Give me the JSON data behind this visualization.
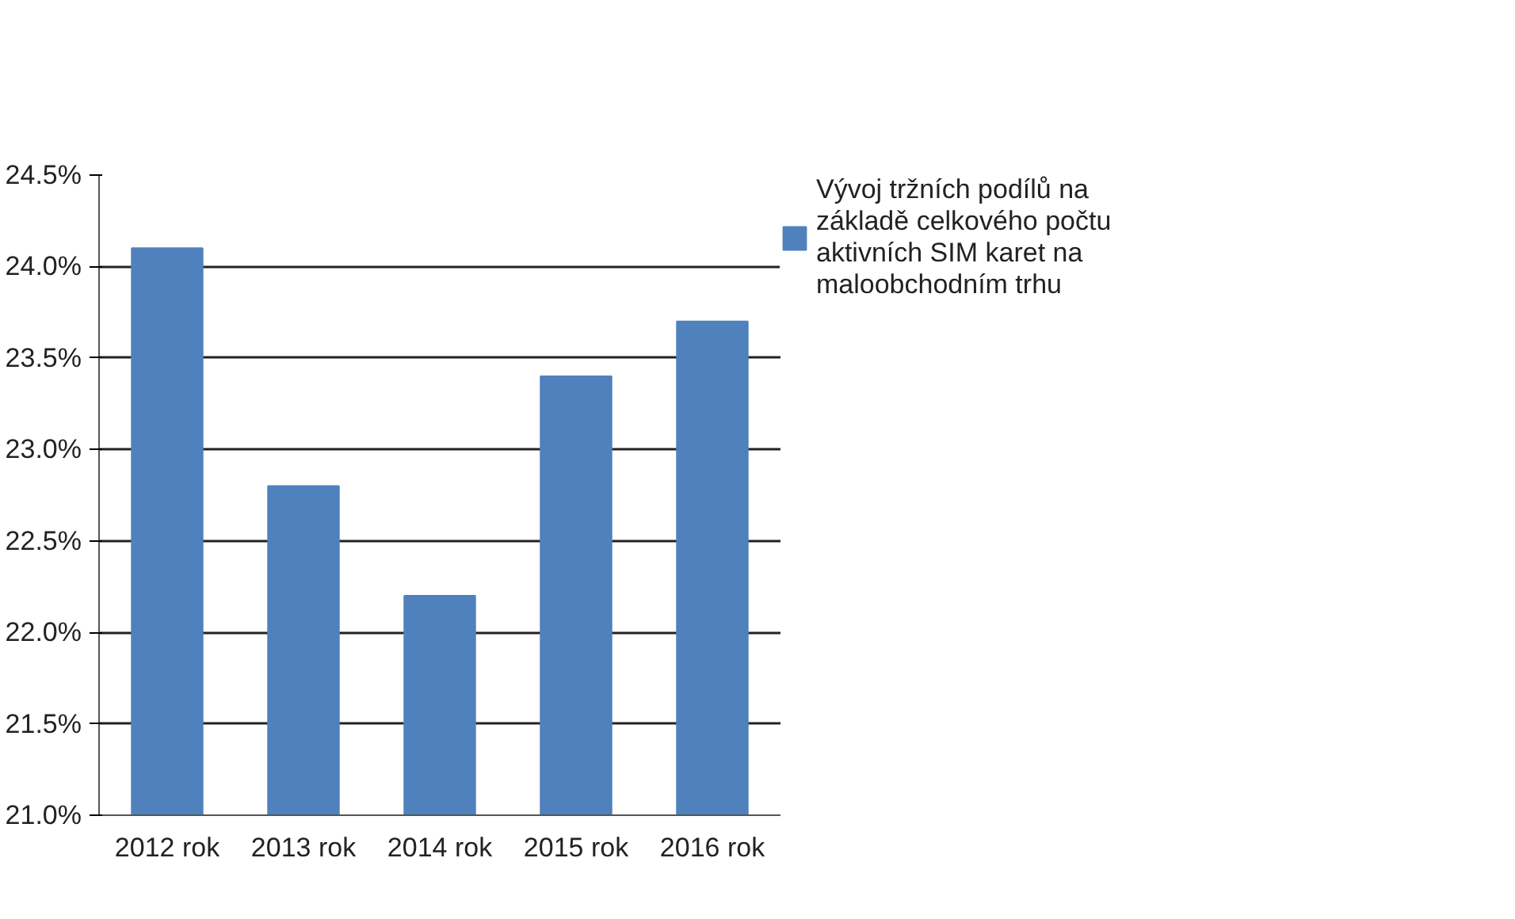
{
  "chart_data": {
    "type": "bar",
    "categories": [
      "2012 rok",
      "2013 rok",
      "2014 rok",
      "2015 rok",
      "2016 rok"
    ],
    "series": [
      {
        "name": "Vývoj tržních podílů na základě celkového počtu aktivních SIM karet na maloobchodním trhu",
        "color": "#4f81bd",
        "values": [
          24.1,
          22.8,
          22.2,
          23.4,
          23.7
        ]
      }
    ],
    "ylim": [
      21.0,
      24.5
    ],
    "yticks": [
      {
        "value": 21.0,
        "label": "21.0%"
      },
      {
        "value": 21.5,
        "label": "21.5%"
      },
      {
        "value": 22.0,
        "label": "22.0%"
      },
      {
        "value": 22.5,
        "label": "22.5%"
      },
      {
        "value": 23.0,
        "label": "23.0%"
      },
      {
        "value": 23.5,
        "label": "23.5%"
      },
      {
        "value": 24.0,
        "label": "24.0%"
      },
      {
        "value": 24.5,
        "label": "24.5%"
      }
    ],
    "grid": "y",
    "legend": "right"
  }
}
